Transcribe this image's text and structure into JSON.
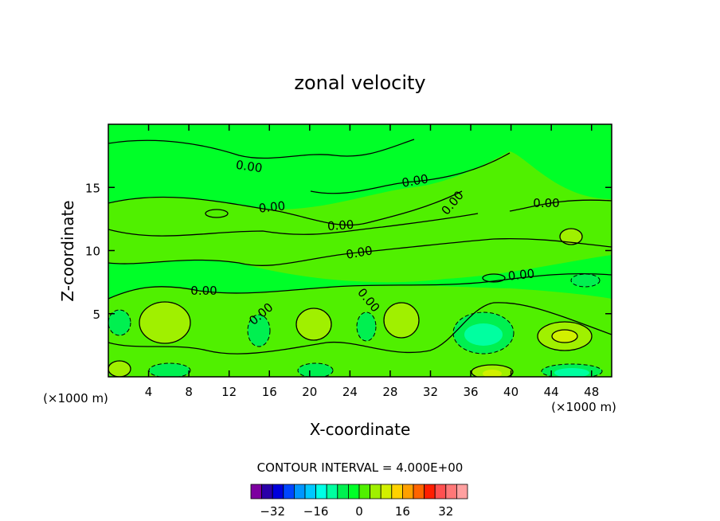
{
  "chart_data": {
    "type": "contour",
    "title": "zonal velocity",
    "xlabel": "X-coordinate",
    "ylabel": "Z-coordinate",
    "x_unit_note": "(×1000 m)",
    "y_unit_note": "(×1000 m)",
    "xlim": [
      0,
      50
    ],
    "ylim": [
      0,
      20
    ],
    "x_ticks": [
      4,
      8,
      12,
      16,
      20,
      24,
      28,
      32,
      36,
      40,
      44,
      48
    ],
    "y_ticks": [
      5,
      10,
      15
    ],
    "contour_interval_text": "CONTOUR INTERVAL = 4.000E+00",
    "contour_label": "0.00",
    "colorbar": {
      "colors": [
        "#7d00a0",
        "#2a00a8",
        "#0000dc",
        "#0046ff",
        "#0096ff",
        "#00c8ff",
        "#00ffe6",
        "#00ffa0",
        "#00f050",
        "#00ff28",
        "#50f000",
        "#a0f000",
        "#d2f000",
        "#ffd200",
        "#ffa000",
        "#ff6400",
        "#ff1e00",
        "#ff5050",
        "#ff7878",
        "#ffa0a0"
      ],
      "tick_labels": [
        "−32",
        "−16",
        "0",
        "16",
        "32"
      ]
    },
    "features": [
      {
        "name": "positive-cell-x6-z4",
        "x": 6.5,
        "z": 4.2,
        "value": 8
      },
      {
        "name": "positive-cell-x20-z4",
        "x": 20,
        "z": 4,
        "value": 8
      },
      {
        "name": "positive-cell-x29-z4",
        "x": 29,
        "z": 4.5,
        "value": 8
      },
      {
        "name": "positive-cell-x45-z3",
        "x": 45.5,
        "z": 3.2,
        "value": 12
      },
      {
        "name": "positive-cell-x38-z0",
        "x": 38.5,
        "z": 0.4,
        "value": 12
      },
      {
        "name": "negative-cell-x36-z3",
        "x": 36.5,
        "z": 3.2,
        "value": -8
      },
      {
        "name": "negative-cell-x46-z0",
        "x": 46,
        "z": 0.5,
        "value": -8
      },
      {
        "name": "negative-cell-x7-z0",
        "x": 7,
        "z": 0.4,
        "value": -4
      },
      {
        "name": "negative-cell-x20-z0",
        "x": 20.5,
        "z": 0.4,
        "value": -4
      },
      {
        "name": "positive-cell-x46-z10",
        "x": 46,
        "z": 10.8,
        "value": 4
      }
    ]
  }
}
